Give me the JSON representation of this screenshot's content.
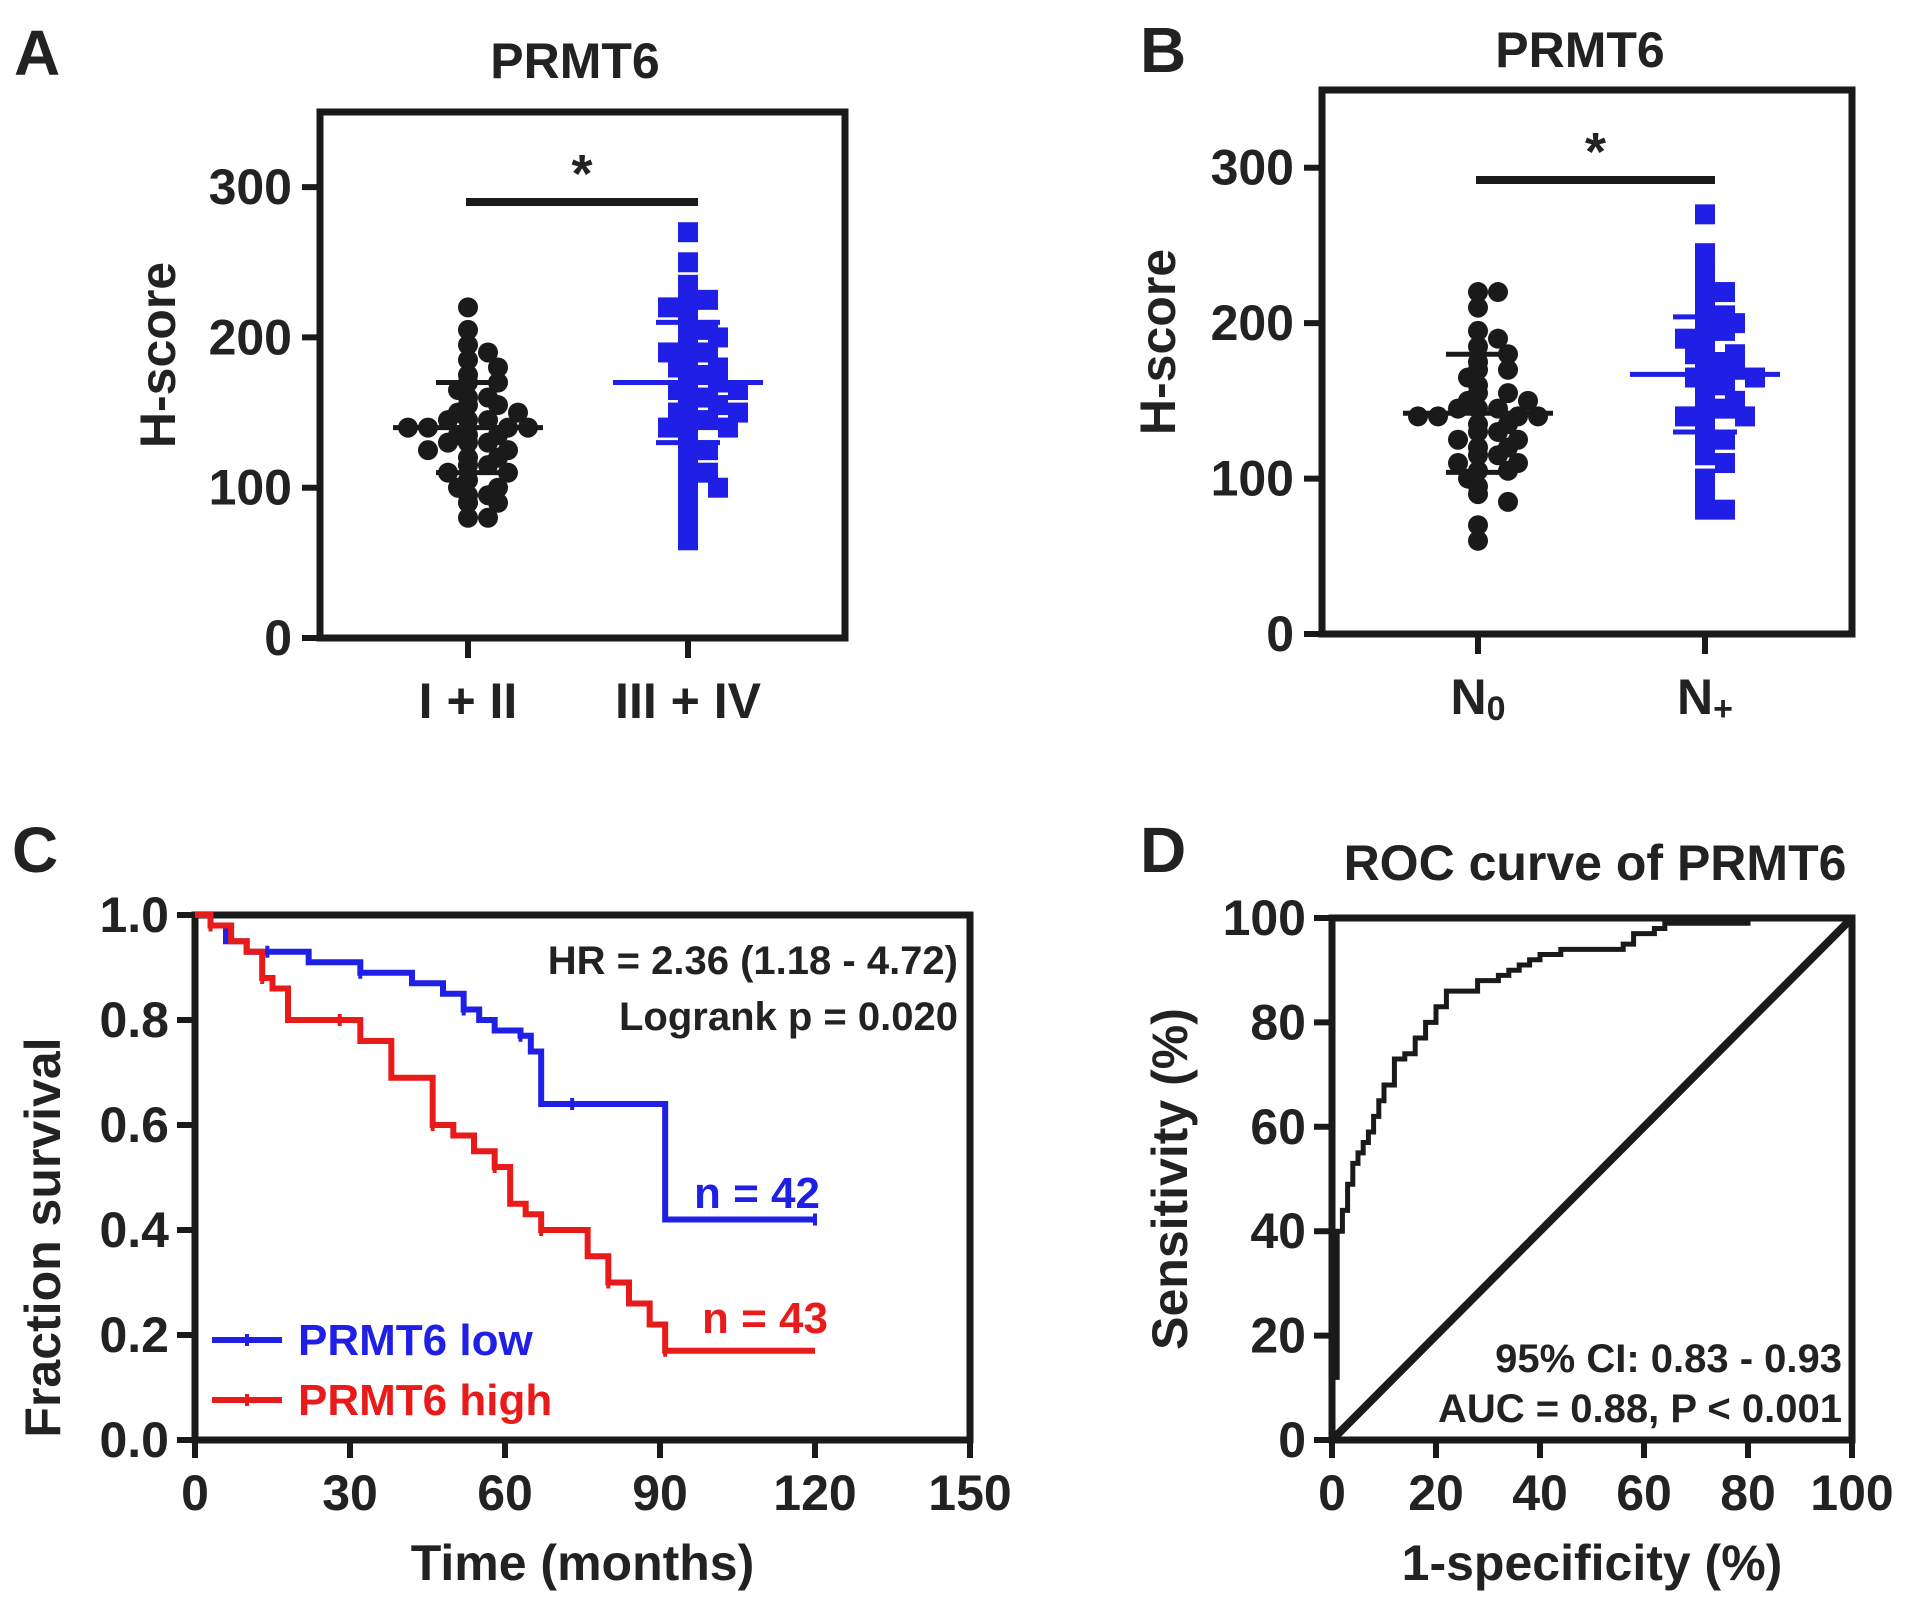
{
  "colors": {
    "black": "#1a1a1a",
    "blue": "#1f1fe6",
    "red": "#e81a1a"
  },
  "chart_data": [
    {
      "panel": "A",
      "type": "scatter",
      "title": "PRMT6",
      "ylabel": "H-score",
      "ylim": [
        0,
        350
      ],
      "yticks": [
        "0",
        "100",
        "200",
        "300"
      ],
      "categories": [
        "I + II",
        "III + IV"
      ],
      "significance": "*",
      "groups": [
        {
          "category": "I + II",
          "color": "black",
          "marker": "circle",
          "mean": 140,
          "sd": 30,
          "values": [
            220,
            205,
            195,
            190,
            185,
            180,
            175,
            170,
            170,
            165,
            160,
            160,
            155,
            155,
            150,
            150,
            145,
            145,
            145,
            140,
            140,
            140,
            140,
            135,
            135,
            135,
            130,
            130,
            130,
            125,
            125,
            120,
            120,
            115,
            115,
            110,
            110,
            105,
            100,
            100,
            95,
            95,
            90,
            90,
            80,
            80
          ]
        },
        {
          "category": "III + IV",
          "color": "blue",
          "marker": "square",
          "mean": 170,
          "sd": 40,
          "values": [
            270,
            250,
            235,
            225,
            225,
            220,
            215,
            210,
            205,
            200,
            200,
            195,
            190,
            190,
            185,
            180,
            180,
            175,
            175,
            170,
            170,
            165,
            165,
            160,
            160,
            155,
            155,
            150,
            150,
            145,
            145,
            140,
            140,
            135,
            130,
            125,
            120,
            115,
            110,
            105,
            100,
            95,
            85,
            75,
            65
          ]
        }
      ]
    },
    {
      "panel": "B",
      "type": "scatter",
      "title": "PRMT6",
      "ylabel": "H-score",
      "ylim": [
        0,
        350
      ],
      "yticks": [
        "0",
        "100",
        "200",
        "300"
      ],
      "categories": [
        "N0",
        "N+"
      ],
      "category_display": [
        {
          "main": "N",
          "sub": "0"
        },
        {
          "main": "N",
          "sub": "+"
        }
      ],
      "significance": "*",
      "groups": [
        {
          "category": "N0",
          "color": "black",
          "marker": "circle",
          "mean": 142,
          "sd": 38,
          "values": [
            220,
            220,
            210,
            195,
            190,
            185,
            180,
            175,
            170,
            170,
            165,
            160,
            155,
            155,
            150,
            150,
            145,
            145,
            145,
            140,
            140,
            140,
            140,
            135,
            135,
            130,
            130,
            125,
            125,
            120,
            120,
            115,
            115,
            110,
            110,
            105,
            105,
            100,
            95,
            90,
            85,
            70,
            60
          ]
        },
        {
          "category": "N+",
          "color": "blue",
          "marker": "square",
          "mean": 167,
          "sd": 37,
          "values": [
            270,
            245,
            240,
            230,
            225,
            220,
            215,
            210,
            205,
            200,
            200,
            195,
            195,
            190,
            185,
            180,
            180,
            175,
            175,
            170,
            170,
            165,
            165,
            160,
            160,
            155,
            150,
            145,
            145,
            140,
            140,
            135,
            130,
            125,
            120,
            115,
            110,
            100,
            95,
            85,
            80,
            80
          ]
        }
      ]
    },
    {
      "panel": "C",
      "type": "line",
      "xlabel": "Time (months)",
      "ylabel": "Fraction survival",
      "xlim": [
        0,
        150
      ],
      "ylim": [
        0,
        1.0
      ],
      "xticks": [
        "0",
        "30",
        "60",
        "90",
        "120",
        "150"
      ],
      "yticks": [
        "0.0",
        "0.2",
        "0.4",
        "0.6",
        "0.8",
        "1.0"
      ],
      "annotations": [
        "HR = 2.36 (1.18 - 4.72)",
        "Logrank p = 0.020"
      ],
      "series": [
        {
          "name": "PRMT6 low",
          "color": "blue",
          "n_label": "n = 42",
          "x": [
            0,
            3,
            6,
            10,
            14,
            22,
            28,
            32,
            42,
            48,
            52,
            55,
            58,
            63,
            65,
            67,
            73,
            82,
            91,
            120
          ],
          "y": [
            1.0,
            0.98,
            0.95,
            0.93,
            0.93,
            0.91,
            0.91,
            0.89,
            0.87,
            0.85,
            0.82,
            0.8,
            0.78,
            0.77,
            0.74,
            0.64,
            0.64,
            0.64,
            0.42,
            0.42
          ]
        },
        {
          "name": "PRMT6 high",
          "color": "red",
          "n_label": "n = 43",
          "x": [
            0,
            3,
            7,
            10,
            13,
            15,
            18,
            28,
            32,
            38,
            46,
            50,
            54,
            58,
            61,
            64,
            67,
            73,
            76,
            80,
            84,
            88,
            91,
            120
          ],
          "y": [
            1.0,
            0.98,
            0.95,
            0.93,
            0.88,
            0.86,
            0.8,
            0.8,
            0.76,
            0.69,
            0.6,
            0.58,
            0.55,
            0.52,
            0.45,
            0.43,
            0.4,
            0.4,
            0.35,
            0.3,
            0.26,
            0.22,
            0.17,
            0.17
          ]
        }
      ]
    },
    {
      "panel": "D",
      "type": "line",
      "title": "ROC curve of PRMT6",
      "xlabel": "1-specificity (%)",
      "ylabel": "Sensitivity (%)",
      "xlim": [
        0,
        100
      ],
      "ylim": [
        0,
        100
      ],
      "xticks": [
        "0",
        "20",
        "40",
        "60",
        "80",
        "100"
      ],
      "yticks": [
        "0",
        "20",
        "40",
        "60",
        "80",
        "100"
      ],
      "annotations": [
        "95% CI: 0.83 - 0.93",
        "AUC = 0.88, P < 0.001"
      ],
      "series": [
        {
          "color": "black",
          "x": [
            0,
            0,
            1,
            1,
            2,
            2,
            3,
            3,
            4,
            4,
            5,
            5,
            6,
            6,
            7,
            7,
            8,
            8,
            9,
            9,
            10,
            10,
            12,
            12,
            14,
            14,
            16,
            16,
            18,
            18,
            20,
            20,
            22,
            22,
            24,
            24,
            28,
            28,
            32,
            32,
            34,
            34,
            36,
            36,
            38,
            38,
            40,
            40,
            44,
            44,
            48,
            48,
            56,
            56,
            58,
            58,
            62,
            62,
            64,
            64,
            80,
            80,
            100
          ],
          "y": [
            0,
            12,
            12,
            40,
            40,
            44,
            44,
            49,
            49,
            53,
            53,
            55,
            55,
            57,
            57,
            59,
            59,
            62,
            62,
            65,
            65,
            68,
            68,
            73,
            73,
            74,
            74,
            77,
            77,
            80,
            80,
            83,
            83,
            86,
            86,
            86,
            86,
            88,
            88,
            89,
            89,
            90,
            90,
            91,
            91,
            92,
            92,
            93,
            93,
            94,
            94,
            94,
            94,
            95,
            95,
            97,
            97,
            98,
            98,
            99,
            99,
            100,
            100
          ]
        },
        {
          "color": "black",
          "x": [
            0,
            100
          ],
          "y": [
            0,
            100
          ]
        }
      ]
    }
  ],
  "panels": [
    "A",
    "B",
    "C",
    "D"
  ]
}
